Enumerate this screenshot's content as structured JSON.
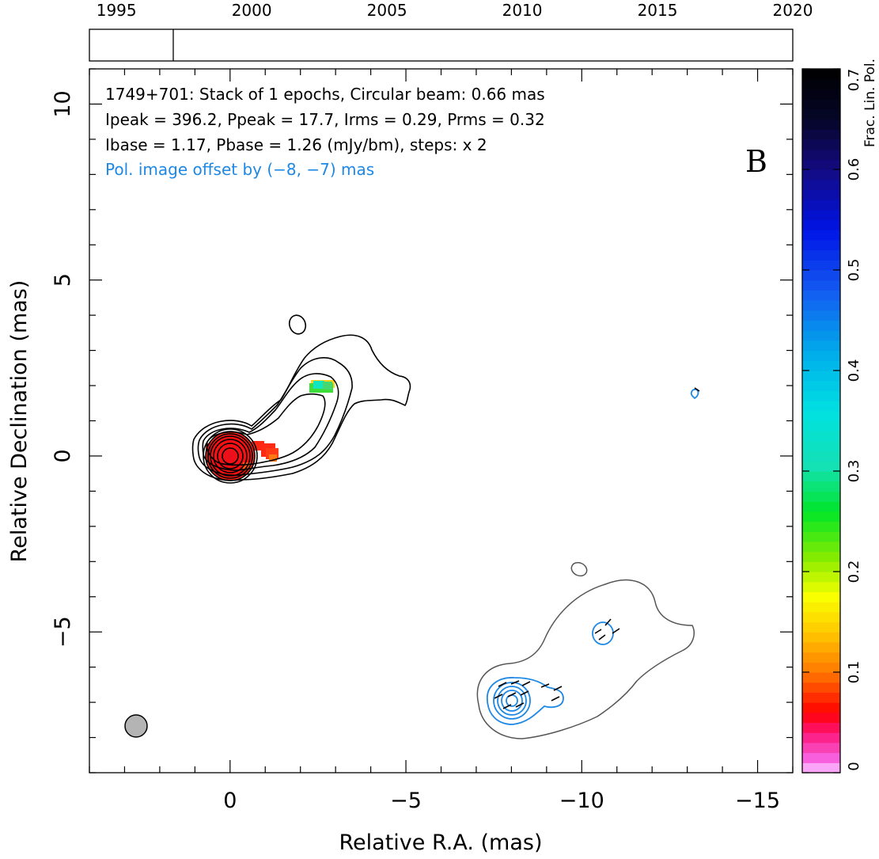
{
  "chart_data": {
    "type": "contour map",
    "source": "1749+701",
    "panel_label": "B",
    "header_lines": [
      "1749+701: Stack of 1 epochs, Circular beam: 0.66 mas",
      "Ipeak = 396.2, Ppeak = 17.7, Irms = 0.29, Prms = 0.32",
      "Ibase = 1.17, Pbase = 1.26 (mJy/bm), steps: x 2"
    ],
    "offset_note": "Pol. image offset by (−8, −7) mas",
    "xlabel": "Relative R.A. (mas)",
    "ylabel": "Relative Declination (mas)",
    "xlim": [
      4,
      -16
    ],
    "ylim": [
      -9,
      11
    ],
    "x_ticks": [
      0,
      -5,
      -10,
      -15
    ],
    "x_tick_labels": [
      "0",
      "−5",
      "−10",
      "−15"
    ],
    "y_ticks": [
      -5,
      0,
      5,
      10
    ],
    "y_tick_labels": [
      "−5",
      "0",
      "5",
      "10"
    ],
    "timeline": {
      "range": [
        1994,
        2020
      ],
      "tick_years": [
        1995,
        2000,
        2005,
        2010,
        2015,
        2020
      ],
      "epochs": [
        1997.1
      ]
    },
    "colorbar": {
      "label": "Frac. Lin. Pol.",
      "range": [
        0,
        0.7
      ],
      "ticks": [
        0,
        0.1,
        0.2,
        0.3,
        0.4,
        0.5,
        0.6,
        0.7
      ],
      "tick_labels": [
        "0",
        "0.1",
        "0.2",
        "0.3",
        "0.4",
        "0.5",
        "0.6",
        "0.7"
      ]
    },
    "beam": {
      "ra": 2.7,
      "dec": -7.9,
      "diameter_mas": 0.66
    },
    "colors": {
      "stokes_i": "#000000",
      "pol_offset_image": "#1e88e5",
      "offset_intensity": "#555555",
      "beam_fill": "#b4b4b4"
    }
  }
}
